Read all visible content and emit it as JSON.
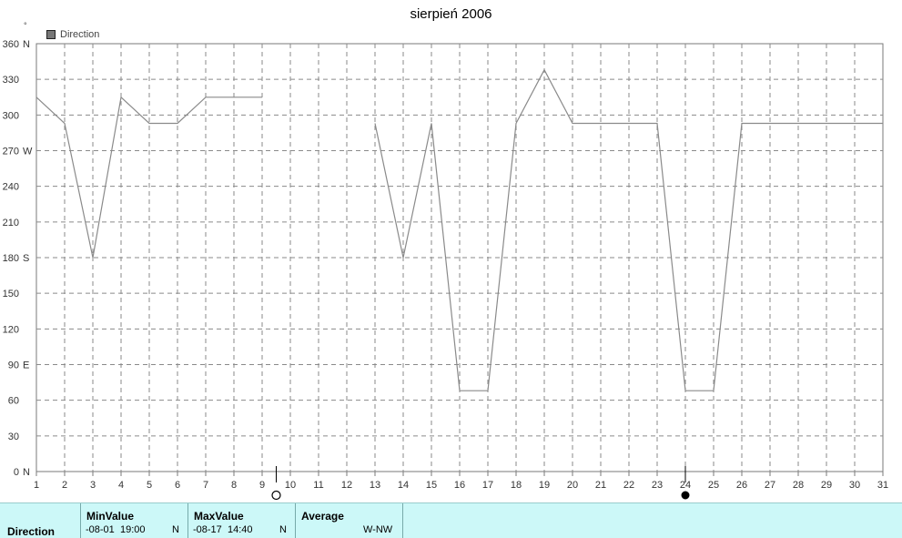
{
  "title": "sierpień 2006",
  "legend": {
    "label": "Direction",
    "swatch_color": "#777777"
  },
  "degree_mark": "°",
  "chart_data": {
    "type": "line",
    "title": "sierpień 2006",
    "ylim": [
      0,
      360
    ],
    "xlim": [
      1,
      31
    ],
    "grid": true,
    "legend_position": "top-left",
    "line_color": "#8a8a8a",
    "y_ticks": [
      {
        "value": 0,
        "label": "0",
        "dir": "N"
      },
      {
        "value": 30,
        "label": "30",
        "dir": ""
      },
      {
        "value": 60,
        "label": "60",
        "dir": ""
      },
      {
        "value": 90,
        "label": "90",
        "dir": "E"
      },
      {
        "value": 120,
        "label": "120",
        "dir": ""
      },
      {
        "value": 150,
        "label": "150",
        "dir": ""
      },
      {
        "value": 180,
        "label": "180",
        "dir": "S"
      },
      {
        "value": 210,
        "label": "210",
        "dir": ""
      },
      {
        "value": 240,
        "label": "240",
        "dir": ""
      },
      {
        "value": 270,
        "label": "270",
        "dir": "W"
      },
      {
        "value": 300,
        "label": "300",
        "dir": ""
      },
      {
        "value": 330,
        "label": "330",
        "dir": ""
      },
      {
        "value": 360,
        "label": "360",
        "dir": "N"
      }
    ],
    "x_ticks": [
      "1",
      "2",
      "3",
      "4",
      "5",
      "6",
      "7",
      "8",
      "9",
      "10",
      "11",
      "12",
      "13",
      "14",
      "15",
      "16",
      "17",
      "18",
      "19",
      "20",
      "21",
      "22",
      "23",
      "24",
      "25",
      "26",
      "27",
      "28",
      "29",
      "30",
      "31"
    ],
    "series": [
      {
        "segments": [
          [
            [
              1,
              315
            ],
            [
              2,
              293
            ],
            [
              3,
              180
            ],
            [
              4,
              315
            ],
            [
              5,
              293
            ],
            [
              6,
              293
            ],
            [
              7,
              315
            ],
            [
              8,
              315
            ],
            [
              9,
              315
            ]
          ],
          [
            [
              13,
              293
            ],
            [
              14,
              180
            ],
            [
              15,
              293
            ],
            [
              16,
              68
            ],
            [
              17,
              68
            ],
            [
              18,
              293
            ],
            [
              19,
              338
            ],
            [
              20,
              293
            ],
            [
              21,
              293
            ],
            [
              22,
              293
            ],
            [
              23,
              293
            ],
            [
              24,
              68
            ],
            [
              25,
              68
            ],
            [
              26,
              293
            ],
            [
              27,
              293
            ],
            [
              28,
              293
            ],
            [
              29,
              293
            ],
            [
              30,
              293
            ],
            [
              31,
              293
            ]
          ]
        ]
      }
    ],
    "moon_markers": [
      {
        "day": 9.5,
        "phase": "full"
      },
      {
        "day": 24,
        "phase": "new"
      }
    ]
  },
  "stats": {
    "row_label": "Direction",
    "min": {
      "header": "MinValue",
      "date": "-08-01",
      "time": "19:00",
      "dir": "N"
    },
    "max": {
      "header": "MaxValue",
      "date": "-08-17",
      "time": "14:40",
      "dir": "N"
    },
    "avg": {
      "header": "Average",
      "value": "W-NW"
    }
  }
}
